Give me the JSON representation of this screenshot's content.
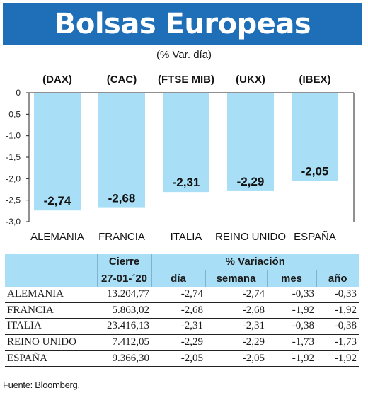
{
  "title": "Bolsas Europeas",
  "subtitle": "(% Var. día)",
  "colors": {
    "title_bg": "#1f6fb8",
    "bar": "#a9dff6",
    "header_bg": "#a9dff6"
  },
  "chart_data": {
    "type": "bar",
    "indices": [
      "(DAX)",
      "(CAC)",
      "(FTSE MIB)",
      "(UKX)",
      "(IBEX)"
    ],
    "categories": [
      "ALEMANIA",
      "FRANCIA",
      "ITALIA",
      "REINO UNIDO",
      "ESPAÑA"
    ],
    "values": [
      -2.74,
      -2.68,
      -2.31,
      -2.29,
      -2.05
    ],
    "value_labels": [
      "-2,74",
      "-2,68",
      "-2,31",
      "-2,29",
      "-2,05"
    ],
    "y_ticks": [
      0,
      -0.5,
      -1.0,
      -1.5,
      -2.0,
      -2.5,
      -3.0
    ],
    "y_tick_labels": [
      "0",
      "-0,5",
      "-1,0",
      "-1,5",
      "-2,0",
      "-2,5",
      "-3,0"
    ],
    "ylim": [
      -3.0,
      0
    ],
    "grid": false
  },
  "table": {
    "group_header_1": "Cierre",
    "group_header_2": "% Variación",
    "col_headers": [
      "27-01-´20",
      "día",
      "semana",
      "mes",
      "año"
    ],
    "rows": [
      [
        "ALEMANIA",
        "13.204,77",
        "-2,74",
        "-2,74",
        "-0,33",
        "-0,33"
      ],
      [
        "FRANCIA",
        "5.863,02",
        "-2,68",
        "-2,68",
        "-1,92",
        "-1,92"
      ],
      [
        "ITALIA",
        "23.416,13",
        "-2,31",
        "-2,31",
        "-0,38",
        "-0,38"
      ],
      [
        "REINO UNIDO",
        "7.412,05",
        "-2,29",
        "-2,29",
        "-1,73",
        "-1,73"
      ],
      [
        "ESPAÑA",
        "9.366,30",
        "-2,05",
        "-2,05",
        "-1,92",
        "-1,92"
      ]
    ]
  },
  "source": "Fuente: Bloomberg."
}
